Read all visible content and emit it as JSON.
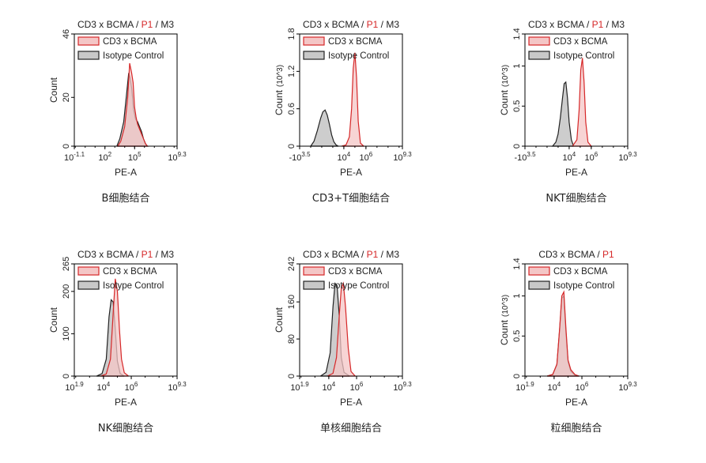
{
  "chart_data": [
    {
      "type": "area",
      "title_parts": [
        "CD3 x BCMA / ",
        "P1",
        " / M3"
      ],
      "caption": "B细胞结合",
      "xlabel": "PE-A",
      "ylabel": "Count",
      "ylabel_exp": "",
      "xscale": "log",
      "x_ticks": [
        {
          "base": "10",
          "exp": "-1.1"
        },
        {
          "base": "10",
          "exp": "2"
        },
        {
          "base": "10",
          "exp": "5"
        },
        {
          "base": "10",
          "exp": "9.3"
        }
      ],
      "x_ticks_pos": [
        -1.1,
        2,
        5,
        9.3
      ],
      "xlim": [
        -1.1,
        9.3
      ],
      "y_ticks": [
        "0",
        "20",
        "46"
      ],
      "y_ticks_val": [
        0,
        20,
        46
      ],
      "ylim": [
        0,
        46
      ],
      "legend": [
        "CD3 x BCMA",
        "Isotype Control"
      ],
      "series": [
        {
          "name": "CD3 x BCMA",
          "color": "#d62728",
          "fill": "#f4c6c6",
          "x": [
            3.3,
            3.6,
            4.0,
            4.3,
            4.5,
            4.7,
            4.85,
            5.0,
            5.15,
            5.3,
            5.5,
            5.7,
            5.9,
            6.1,
            6.3
          ],
          "y": [
            0,
            2,
            8,
            20,
            34,
            30,
            26,
            16,
            12,
            9,
            7,
            5,
            3,
            1,
            0
          ]
        },
        {
          "name": "Isotype Control",
          "color": "#222222",
          "fill": "#c8c8c8",
          "x": [
            3.2,
            3.5,
            3.9,
            4.2,
            4.4,
            4.55,
            4.7,
            4.9,
            5.1,
            5.3,
            5.5,
            5.7,
            5.9,
            6.1,
            6.3
          ],
          "y": [
            0,
            3,
            10,
            22,
            30,
            28,
            24,
            15,
            11,
            10,
            8,
            6,
            3,
            1,
            0
          ]
        }
      ]
    },
    {
      "type": "area",
      "title_parts": [
        "CD3 x BCMA / ",
        "P1",
        " / M3"
      ],
      "caption": "CD3+T细胞结合",
      "xlabel": "PE-A",
      "ylabel": "Count",
      "ylabel_exp": "(10^3)",
      "xscale": "log",
      "x_ticks": [
        {
          "base": "-10",
          "exp": "3.5"
        },
        {
          "base": "10",
          "exp": "4"
        },
        {
          "base": "10",
          "exp": "6"
        },
        {
          "base": "10",
          "exp": "9.3"
        }
      ],
      "x_ticks_pos": [
        0,
        4,
        6,
        9.3
      ],
      "xlim": [
        0,
        9.3
      ],
      "y_ticks": [
        "0",
        "0.6",
        "1.2",
        "1.8"
      ],
      "y_ticks_val": [
        0,
        0.6,
        1.2,
        1.8
      ],
      "ylim": [
        0,
        1.8
      ],
      "legend": [
        "CD3 x BCMA",
        "Isotype Control"
      ],
      "series": [
        {
          "name": "CD3 x BCMA",
          "color": "#d62728",
          "fill": "#f4c6c6",
          "x": [
            3.8,
            4.2,
            4.5,
            4.7,
            4.85,
            5.0,
            5.15,
            5.3,
            5.5,
            5.8
          ],
          "y": [
            0,
            0.02,
            0.15,
            0.6,
            1.25,
            1.5,
            1.1,
            0.4,
            0.05,
            0
          ]
        },
        {
          "name": "Isotype Control",
          "color": "#222222",
          "fill": "#c8c8c8",
          "x": [
            1.0,
            1.3,
            1.6,
            1.9,
            2.1,
            2.3,
            2.5,
            2.7,
            2.9,
            3.1,
            3.3,
            3.5
          ],
          "y": [
            0,
            0.08,
            0.25,
            0.45,
            0.55,
            0.58,
            0.5,
            0.35,
            0.18,
            0.07,
            0.02,
            0
          ]
        }
      ]
    },
    {
      "type": "area",
      "title_parts": [
        "CD3 x BCMA / ",
        "P1",
        " / M3"
      ],
      "caption": "NKT细胞结合",
      "xlabel": "PE-A",
      "ylabel": "Count",
      "ylabel_exp": "(10^3)",
      "xscale": "log",
      "x_ticks": [
        {
          "base": "-10",
          "exp": "3.5"
        },
        {
          "base": "10",
          "exp": "4"
        },
        {
          "base": "10",
          "exp": "6"
        },
        {
          "base": "10",
          "exp": "9.3"
        }
      ],
      "x_ticks_pos": [
        0,
        4,
        6,
        9.3
      ],
      "xlim": [
        0,
        9.3
      ],
      "y_ticks": [
        "0",
        "0.5",
        "1",
        "1.4"
      ],
      "y_ticks_val": [
        0,
        0.5,
        1,
        1.4
      ],
      "ylim": [
        0,
        1.4
      ],
      "legend": [
        "CD3 x BCMA",
        "Isotype Control"
      ],
      "series": [
        {
          "name": "CD3 x BCMA",
          "color": "#d62728",
          "fill": "#f4c6c6",
          "x": [
            4.3,
            4.7,
            4.9,
            5.05,
            5.2,
            5.35,
            5.5,
            5.7,
            6.0
          ],
          "y": [
            0,
            0.08,
            0.45,
            0.95,
            1.1,
            0.8,
            0.3,
            0.05,
            0
          ]
        },
        {
          "name": "Isotype Control",
          "color": "#222222",
          "fill": "#c8c8c8",
          "x": [
            2.5,
            2.8,
            3.0,
            3.2,
            3.4,
            3.55,
            3.7,
            3.85,
            4.0,
            4.2,
            4.4
          ],
          "y": [
            0,
            0.05,
            0.15,
            0.35,
            0.6,
            0.78,
            0.8,
            0.6,
            0.3,
            0.08,
            0
          ]
        }
      ]
    },
    {
      "type": "area",
      "title_parts": [
        "CD3 x BCMA / ",
        "P1",
        " / M3"
      ],
      "caption": "NK细胞结合",
      "xlabel": "PE-A",
      "ylabel": "Count",
      "ylabel_exp": "",
      "xscale": "log",
      "x_ticks": [
        {
          "base": "10",
          "exp": "1.9"
        },
        {
          "base": "10",
          "exp": "4"
        },
        {
          "base": "10",
          "exp": "6"
        },
        {
          "base": "10",
          "exp": "9.3"
        }
      ],
      "x_ticks_pos": [
        1.9,
        4,
        6,
        9.3
      ],
      "xlim": [
        1.9,
        9.3
      ],
      "y_ticks": [
        "0",
        "100",
        "200",
        "265"
      ],
      "y_ticks_val": [
        0,
        100,
        200,
        265
      ],
      "ylim": [
        0,
        265
      ],
      "legend": [
        "CD3 x BCMA",
        "Isotype Control"
      ],
      "series": [
        {
          "name": "CD3 x BCMA",
          "color": "#d62728",
          "fill": "#f4c6c6",
          "x": [
            3.8,
            4.2,
            4.5,
            4.7,
            4.85,
            5.0,
            5.15,
            5.3,
            5.5,
            5.8
          ],
          "y": [
            0,
            5,
            40,
            150,
            230,
            200,
            110,
            40,
            8,
            0
          ]
        },
        {
          "name": "Isotype Control",
          "color": "#222222",
          "fill": "#c8c8c8",
          "x": [
            3.5,
            3.9,
            4.2,
            4.4,
            4.55,
            4.7,
            4.85,
            5.0,
            5.2,
            5.5
          ],
          "y": [
            0,
            6,
            40,
            140,
            180,
            175,
            110,
            35,
            6,
            0
          ]
        }
      ]
    },
    {
      "type": "area",
      "title_parts": [
        "CD3 x BCMA / ",
        "P1",
        " / M3"
      ],
      "caption": "单核细胞结合",
      "xlabel": "PE-A",
      "ylabel": "Count",
      "ylabel_exp": "",
      "xscale": "log",
      "x_ticks": [
        {
          "base": "10",
          "exp": "1.9"
        },
        {
          "base": "10",
          "exp": "4"
        },
        {
          "base": "10",
          "exp": "6"
        },
        {
          "base": "10",
          "exp": "9.3"
        }
      ],
      "x_ticks_pos": [
        1.9,
        4,
        6,
        9.3
      ],
      "xlim": [
        1.9,
        9.3
      ],
      "y_ticks": [
        "0",
        "80",
        "160",
        "242"
      ],
      "y_ticks_val": [
        0,
        80,
        160,
        242
      ],
      "ylim": [
        0,
        242
      ],
      "legend": [
        "CD3 x BCMA",
        "Isotype Control"
      ],
      "series": [
        {
          "name": "CD3 x BCMA",
          "color": "#d62728",
          "fill": "#f4c6c6",
          "x": [
            3.9,
            4.3,
            4.55,
            4.75,
            4.9,
            5.05,
            5.2,
            5.4,
            5.6,
            5.9
          ],
          "y": [
            0,
            6,
            40,
            130,
            190,
            200,
            150,
            60,
            10,
            0
          ]
        },
        {
          "name": "Isotype Control",
          "color": "#222222",
          "fill": "#c8c8c8",
          "x": [
            3.4,
            3.8,
            4.1,
            4.3,
            4.45,
            4.6,
            4.75,
            4.9,
            5.1,
            5.5
          ],
          "y": [
            0,
            8,
            50,
            150,
            200,
            195,
            130,
            40,
            8,
            0
          ]
        }
      ]
    },
    {
      "type": "area",
      "title_parts": [
        "CD3 x BCMA / ",
        "P1",
        ""
      ],
      "caption": "粒细胞结合",
      "xlabel": "PE-A",
      "ylabel": "Count",
      "ylabel_exp": "(10^3)",
      "xscale": "log",
      "x_ticks": [
        {
          "base": "10",
          "exp": "1.9"
        },
        {
          "base": "10",
          "exp": "4"
        },
        {
          "base": "10",
          "exp": "6"
        },
        {
          "base": "10",
          "exp": "9.3"
        }
      ],
      "x_ticks_pos": [
        1.9,
        4,
        6,
        9.3
      ],
      "xlim": [
        1.9,
        9.3
      ],
      "y_ticks": [
        "0",
        "0.5",
        "1",
        "1.4"
      ],
      "y_ticks_val": [
        0,
        0.5,
        1,
        1.4
      ],
      "ylim": [
        0,
        1.4
      ],
      "legend": [
        "CD3 x BCMA",
        "Isotype Control"
      ],
      "series": [
        {
          "name": "CD3 x BCMA",
          "color": "#d62728",
          "fill": "#f4c6c6",
          "x": [
            3.5,
            3.9,
            4.2,
            4.4,
            4.55,
            4.7,
            4.85,
            5.0,
            5.2,
            5.5,
            5.8
          ],
          "y": [
            0,
            0.02,
            0.15,
            0.6,
            1.0,
            1.05,
            0.6,
            0.2,
            0.08,
            0.02,
            0
          ]
        },
        {
          "name": "Isotype Control",
          "color": "#222222",
          "fill": "#c8c8c8",
          "x": [
            3.5,
            3.9,
            4.2,
            4.4,
            4.55,
            4.7,
            4.85,
            5.0,
            5.2,
            5.5,
            5.8
          ],
          "y": [
            0,
            0.02,
            0.14,
            0.58,
            0.97,
            1.0,
            0.55,
            0.18,
            0.06,
            0.01,
            0
          ]
        }
      ]
    }
  ]
}
